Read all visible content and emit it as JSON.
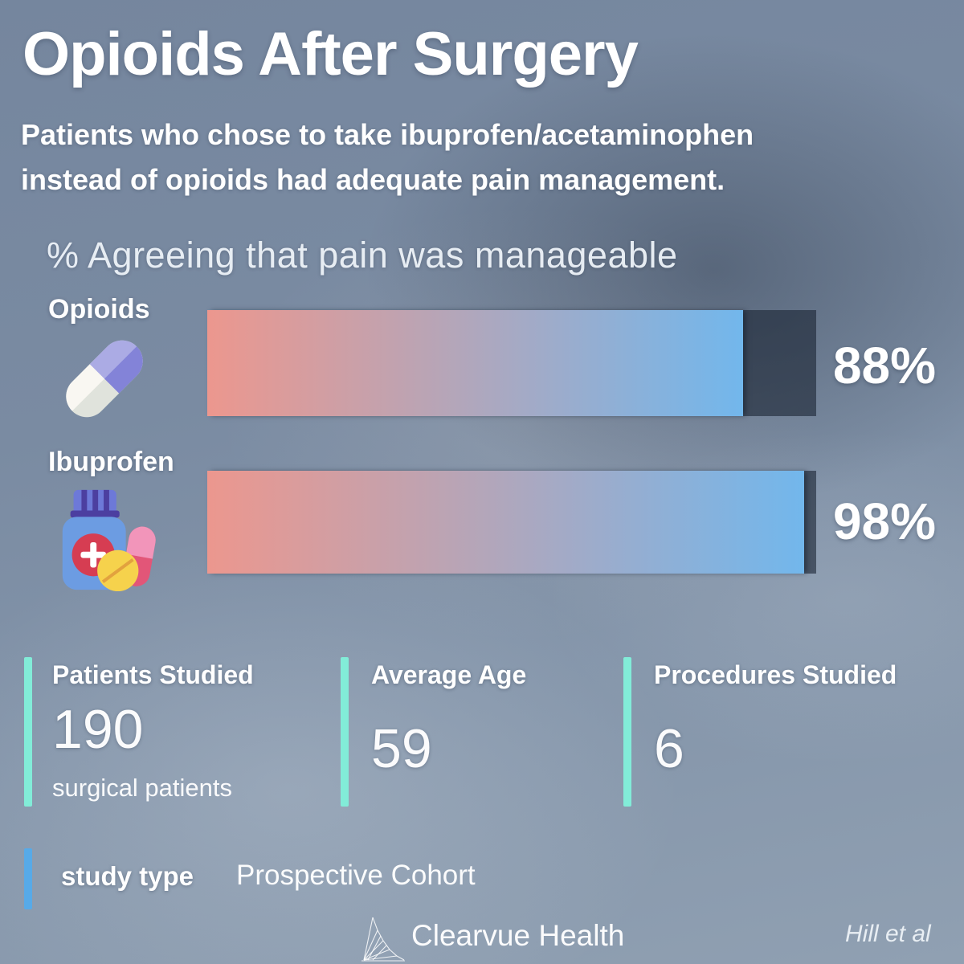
{
  "header": {
    "title": "Opioids After Surgery",
    "subtitle_line1": "Patients who chose to take ibuprofen/acetaminophen",
    "subtitle_line2": "instead of opioids had adequate pain management."
  },
  "chart_data": {
    "type": "bar",
    "orientation": "horizontal",
    "title": "% Agreeing that pain was manageable",
    "categories": [
      "Opioids",
      "Ibuprofen"
    ],
    "values": [
      88,
      98
    ],
    "value_labels": [
      "88%",
      "98%"
    ],
    "xlim": [
      0,
      100
    ],
    "grid": false,
    "legend": false,
    "category_icons": [
      "capsule-pill-icon",
      "medicine-bottle-pills-icon"
    ],
    "bar_gradient": [
      "#ec978e",
      "#72b7ec"
    ],
    "track_color": "rgba(25,35,50,0.6)"
  },
  "stats": [
    {
      "label": "Patients Studied",
      "value": "190",
      "sublabel": "surgical patients"
    },
    {
      "label": "Average Age",
      "value": "59",
      "sublabel": ""
    },
    {
      "label": "Procedures Studied",
      "value": "6",
      "sublabel": ""
    }
  ],
  "study_type": {
    "label": "study type",
    "value": "Prospective Cohort"
  },
  "footer": {
    "brand": "Clearvue Health",
    "citation": "Hill et al"
  },
  "colors": {
    "background": "#7b8ca2",
    "stat_accent_teal": "#82ecd8",
    "study_accent_blue": "#57aae8",
    "text": "#ffffff"
  }
}
